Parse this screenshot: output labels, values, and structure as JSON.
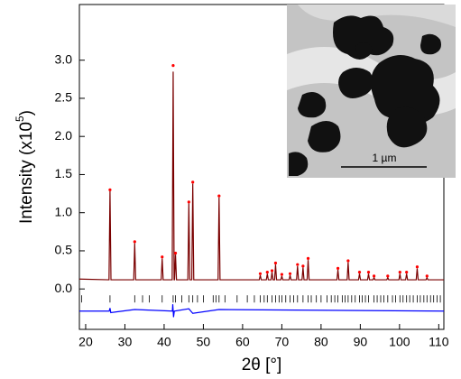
{
  "chart_data": {
    "type": "line",
    "xlabel": "2θ [°]",
    "ylabel": {
      "text": "Intensity (x10",
      "superscript": "5",
      "suffix": ")"
    },
    "xlim": [
      18.4,
      111.3
    ],
    "ylim": [
      -0.53,
      3.73
    ],
    "xticks": [
      20,
      30,
      40,
      50,
      60,
      70,
      80,
      90,
      100,
      110
    ],
    "yticks": [
      {
        "value": 0,
        "label": "0.0"
      },
      {
        "value": 0.5,
        "label": "0.5"
      },
      {
        "value": 1,
        "label": "1.0"
      },
      {
        "value": 1.5,
        "label": "1.5"
      },
      {
        "value": 2,
        "label": "2.0"
      },
      {
        "value": 2.5,
        "label": "2.5"
      },
      {
        "value": 3,
        "label": "3.0"
      }
    ],
    "series": [
      {
        "color": "#7a0000",
        "style": "line",
        "x": [
          18.4,
          25.95,
          26.2,
          26.45,
          32.25,
          32.5,
          32.75,
          39.25,
          39.5,
          39.75,
          42.05,
          42.3,
          42.55,
          42.65,
          42.9,
          43.15,
          46.05,
          46.3,
          46.55,
          47.05,
          47.3,
          47.55,
          53.75,
          54.0,
          54.25,
          64.25,
          64.5,
          64.75,
          66.05,
          66.3,
          66.55,
          67.25,
          67.5,
          67.75,
          68.15,
          68.4,
          68.65,
          69.75,
          70.0,
          70.25,
          71.85,
          72.1,
          72.35,
          73.75,
          74.0,
          74.25,
          75.15,
          75.4,
          75.65,
          76.45,
          76.7,
          76.95,
          84.05,
          84.3,
          84.55,
          86.65,
          86.9,
          87.15,
          89.55,
          89.8,
          90.05,
          91.85,
          92.1,
          92.35,
          93.25,
          93.5,
          93.75,
          96.75,
          97.0,
          97.25,
          99.85,
          100.1,
          100.35,
          101.55,
          101.8,
          102.05,
          104.25,
          104.5,
          104.75,
          106.75,
          107.0,
          107.25,
          111.3
        ],
        "values": [
          0.13,
          0.12,
          1.28,
          0.12,
          0.12,
          0.6,
          0.12,
          0.12,
          0.4,
          0.12,
          0.12,
          2.85,
          0.12,
          0.12,
          0.45,
          0.12,
          0.12,
          1.12,
          0.12,
          0.12,
          1.38,
          0.12,
          0.12,
          1.2,
          0.12,
          0.12,
          0.18,
          0.12,
          0.12,
          0.2,
          0.12,
          0.12,
          0.22,
          0.12,
          0.12,
          0.32,
          0.12,
          0.12,
          0.17,
          0.12,
          0.12,
          0.18,
          0.12,
          0.12,
          0.3,
          0.12,
          0.12,
          0.28,
          0.12,
          0.12,
          0.38,
          0.12,
          0.12,
          0.25,
          0.12,
          0.12,
          0.35,
          0.12,
          0.12,
          0.2,
          0.12,
          0.12,
          0.2,
          0.12,
          0.12,
          0.15,
          0.12,
          0.12,
          0.15,
          0.12,
          0.12,
          0.2,
          0.12,
          0.12,
          0.2,
          0.12,
          0.12,
          0.27,
          0.12,
          0.12,
          0.15,
          0.12,
          0.12
        ]
      },
      {
        "color": "#ff0000",
        "style": "dots",
        "x": [
          26.2,
          32.5,
          39.5,
          42.3,
          42.9,
          46.3,
          47.3,
          54.0,
          64.5,
          66.3,
          67.5,
          68.4,
          70.0,
          72.1,
          74.0,
          75.4,
          76.7,
          84.3,
          86.9,
          89.8,
          92.1,
          93.5,
          97.0,
          100.1,
          101.8,
          104.5,
          107.0
        ],
        "values": [
          1.3,
          0.62,
          0.42,
          2.93,
          0.47,
          1.14,
          1.4,
          1.22,
          0.2,
          0.22,
          0.24,
          0.34,
          0.19,
          0.2,
          0.32,
          0.3,
          0.4,
          0.27,
          0.37,
          0.22,
          0.22,
          0.17,
          0.17,
          0.22,
          0.22,
          0.29,
          0.17
        ]
      },
      {
        "color": "#0000ff",
        "style": "line",
        "x": [
          18.4,
          26.0,
          26.2,
          26.4,
          32.5,
          42.1,
          42.2,
          42.4,
          42.6,
          46.3,
          47.3,
          54.0,
          111.3
        ],
        "values": [
          -0.29,
          -0.29,
          -0.25,
          -0.31,
          -0.27,
          -0.29,
          -0.2,
          -0.37,
          -0.29,
          -0.26,
          -0.32,
          -0.27,
          -0.29
        ]
      }
    ],
    "reflections": {
      "color": "#000000",
      "x": [
        19.0,
        26.2,
        32.5,
        34.5,
        36.2,
        39.5,
        42.3,
        42.9,
        44.5,
        46.3,
        47.3,
        48.5,
        50.0,
        52.5,
        53.2,
        54.0,
        55.5,
        58.6,
        61.2,
        63.0,
        64.5,
        65.5,
        66.3,
        67.5,
        68.4,
        69.3,
        70.0,
        71.0,
        72.1,
        73.0,
        74.0,
        75.4,
        76.7,
        77.5,
        78.8,
        80.0,
        81.5,
        82.6,
        83.5,
        84.3,
        85.4,
        86.1,
        86.9,
        87.8,
        88.7,
        89.8,
        90.5,
        91.3,
        92.1,
        93.5,
        94.3,
        95.2,
        96.0,
        97.0,
        98.2,
        99.0,
        100.1,
        100.9,
        101.8,
        102.6,
        103.5,
        104.5,
        105.3,
        106.2,
        107.0,
        107.9,
        108.7,
        109.6,
        110.4
      ]
    },
    "inset": {
      "scale_label": "1 µm"
    }
  }
}
